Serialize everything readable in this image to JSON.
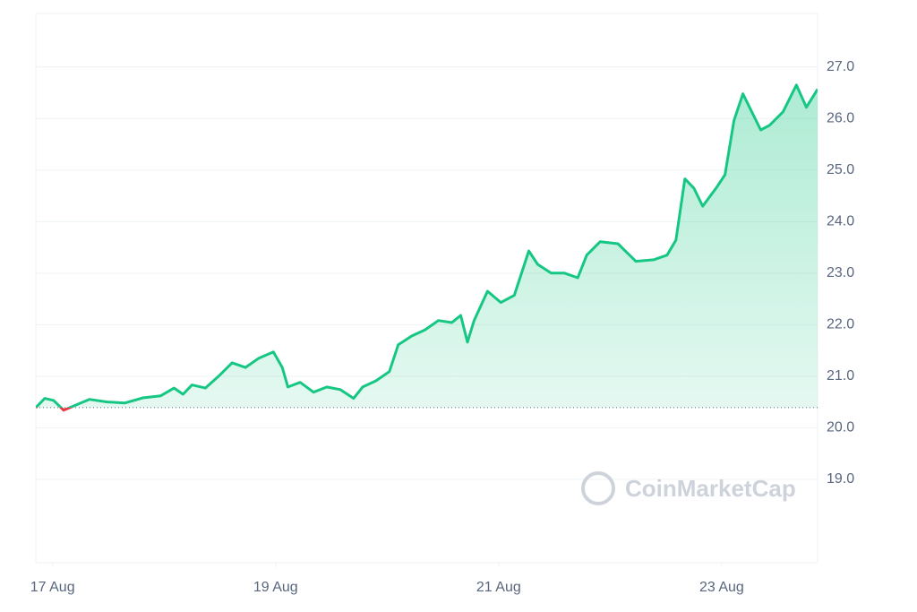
{
  "chart_data": {
    "type": "line",
    "x": [
      -0.15,
      -0.07,
      0.01,
      0.1,
      0.21,
      0.33,
      0.49,
      0.65,
      0.81,
      0.97,
      1.09,
      1.17,
      1.25,
      1.37,
      1.49,
      1.61,
      1.73,
      1.85,
      1.98,
      2.06,
      2.11,
      2.22,
      2.34,
      2.46,
      2.58,
      2.7,
      2.78,
      2.9,
      3.02,
      3.1,
      3.22,
      3.34,
      3.46,
      3.58,
      3.66,
      3.72,
      3.78,
      3.9,
      4.02,
      4.14,
      4.27,
      4.35,
      4.47,
      4.59,
      4.71,
      4.79,
      4.91,
      5.07,
      5.15,
      5.23,
      5.39,
      5.51,
      5.59,
      5.67,
      5.75,
      5.83,
      5.95,
      6.03,
      6.11,
      6.19,
      6.27,
      6.35,
      6.43,
      6.55,
      6.67,
      6.76,
      6.86
    ],
    "values": [
      20.39,
      20.57,
      20.53,
      20.34,
      20.44,
      20.55,
      20.5,
      20.48,
      20.58,
      20.62,
      20.77,
      20.65,
      20.83,
      20.77,
      21.0,
      21.26,
      21.17,
      21.35,
      21.47,
      21.17,
      20.79,
      20.88,
      20.69,
      20.79,
      20.74,
      20.57,
      20.79,
      20.91,
      21.09,
      21.61,
      21.78,
      21.9,
      22.08,
      22.04,
      22.18,
      21.66,
      22.08,
      22.65,
      22.43,
      22.57,
      23.43,
      23.17,
      23.0,
      23.0,
      22.91,
      23.35,
      23.61,
      23.57,
      23.4,
      23.23,
      23.26,
      23.35,
      23.64,
      24.83,
      24.65,
      24.3,
      24.65,
      24.91,
      25.96,
      26.48,
      26.13,
      25.78,
      25.87,
      26.13,
      26.65,
      26.22,
      26.57
    ],
    "baseline": 20.39,
    "color": "#16c784",
    "down_color": "#ea3943",
    "xlim": [
      -0.15,
      6.86
    ],
    "xticks": [
      {
        "value": 0,
        "label": "17 Aug"
      },
      {
        "value": 2,
        "label": "19 Aug"
      },
      {
        "value": 4,
        "label": "21 Aug"
      },
      {
        "value": 6,
        "label": "23 Aug"
      }
    ],
    "ylim": [
      17.38,
      28.04
    ],
    "yticks": [
      {
        "value": 19,
        "label": "19.0"
      },
      {
        "value": 20,
        "label": "20.0"
      },
      {
        "value": 21,
        "label": "21.0"
      },
      {
        "value": 22,
        "label": "22.0"
      },
      {
        "value": 23,
        "label": "23.0"
      },
      {
        "value": 24,
        "label": "24.0"
      },
      {
        "value": 25,
        "label": "25.0"
      },
      {
        "value": 26,
        "label": "26.0"
      },
      {
        "value": 27,
        "label": "27.0"
      }
    ],
    "grid": true,
    "watermark": "CoinMarketCap"
  }
}
